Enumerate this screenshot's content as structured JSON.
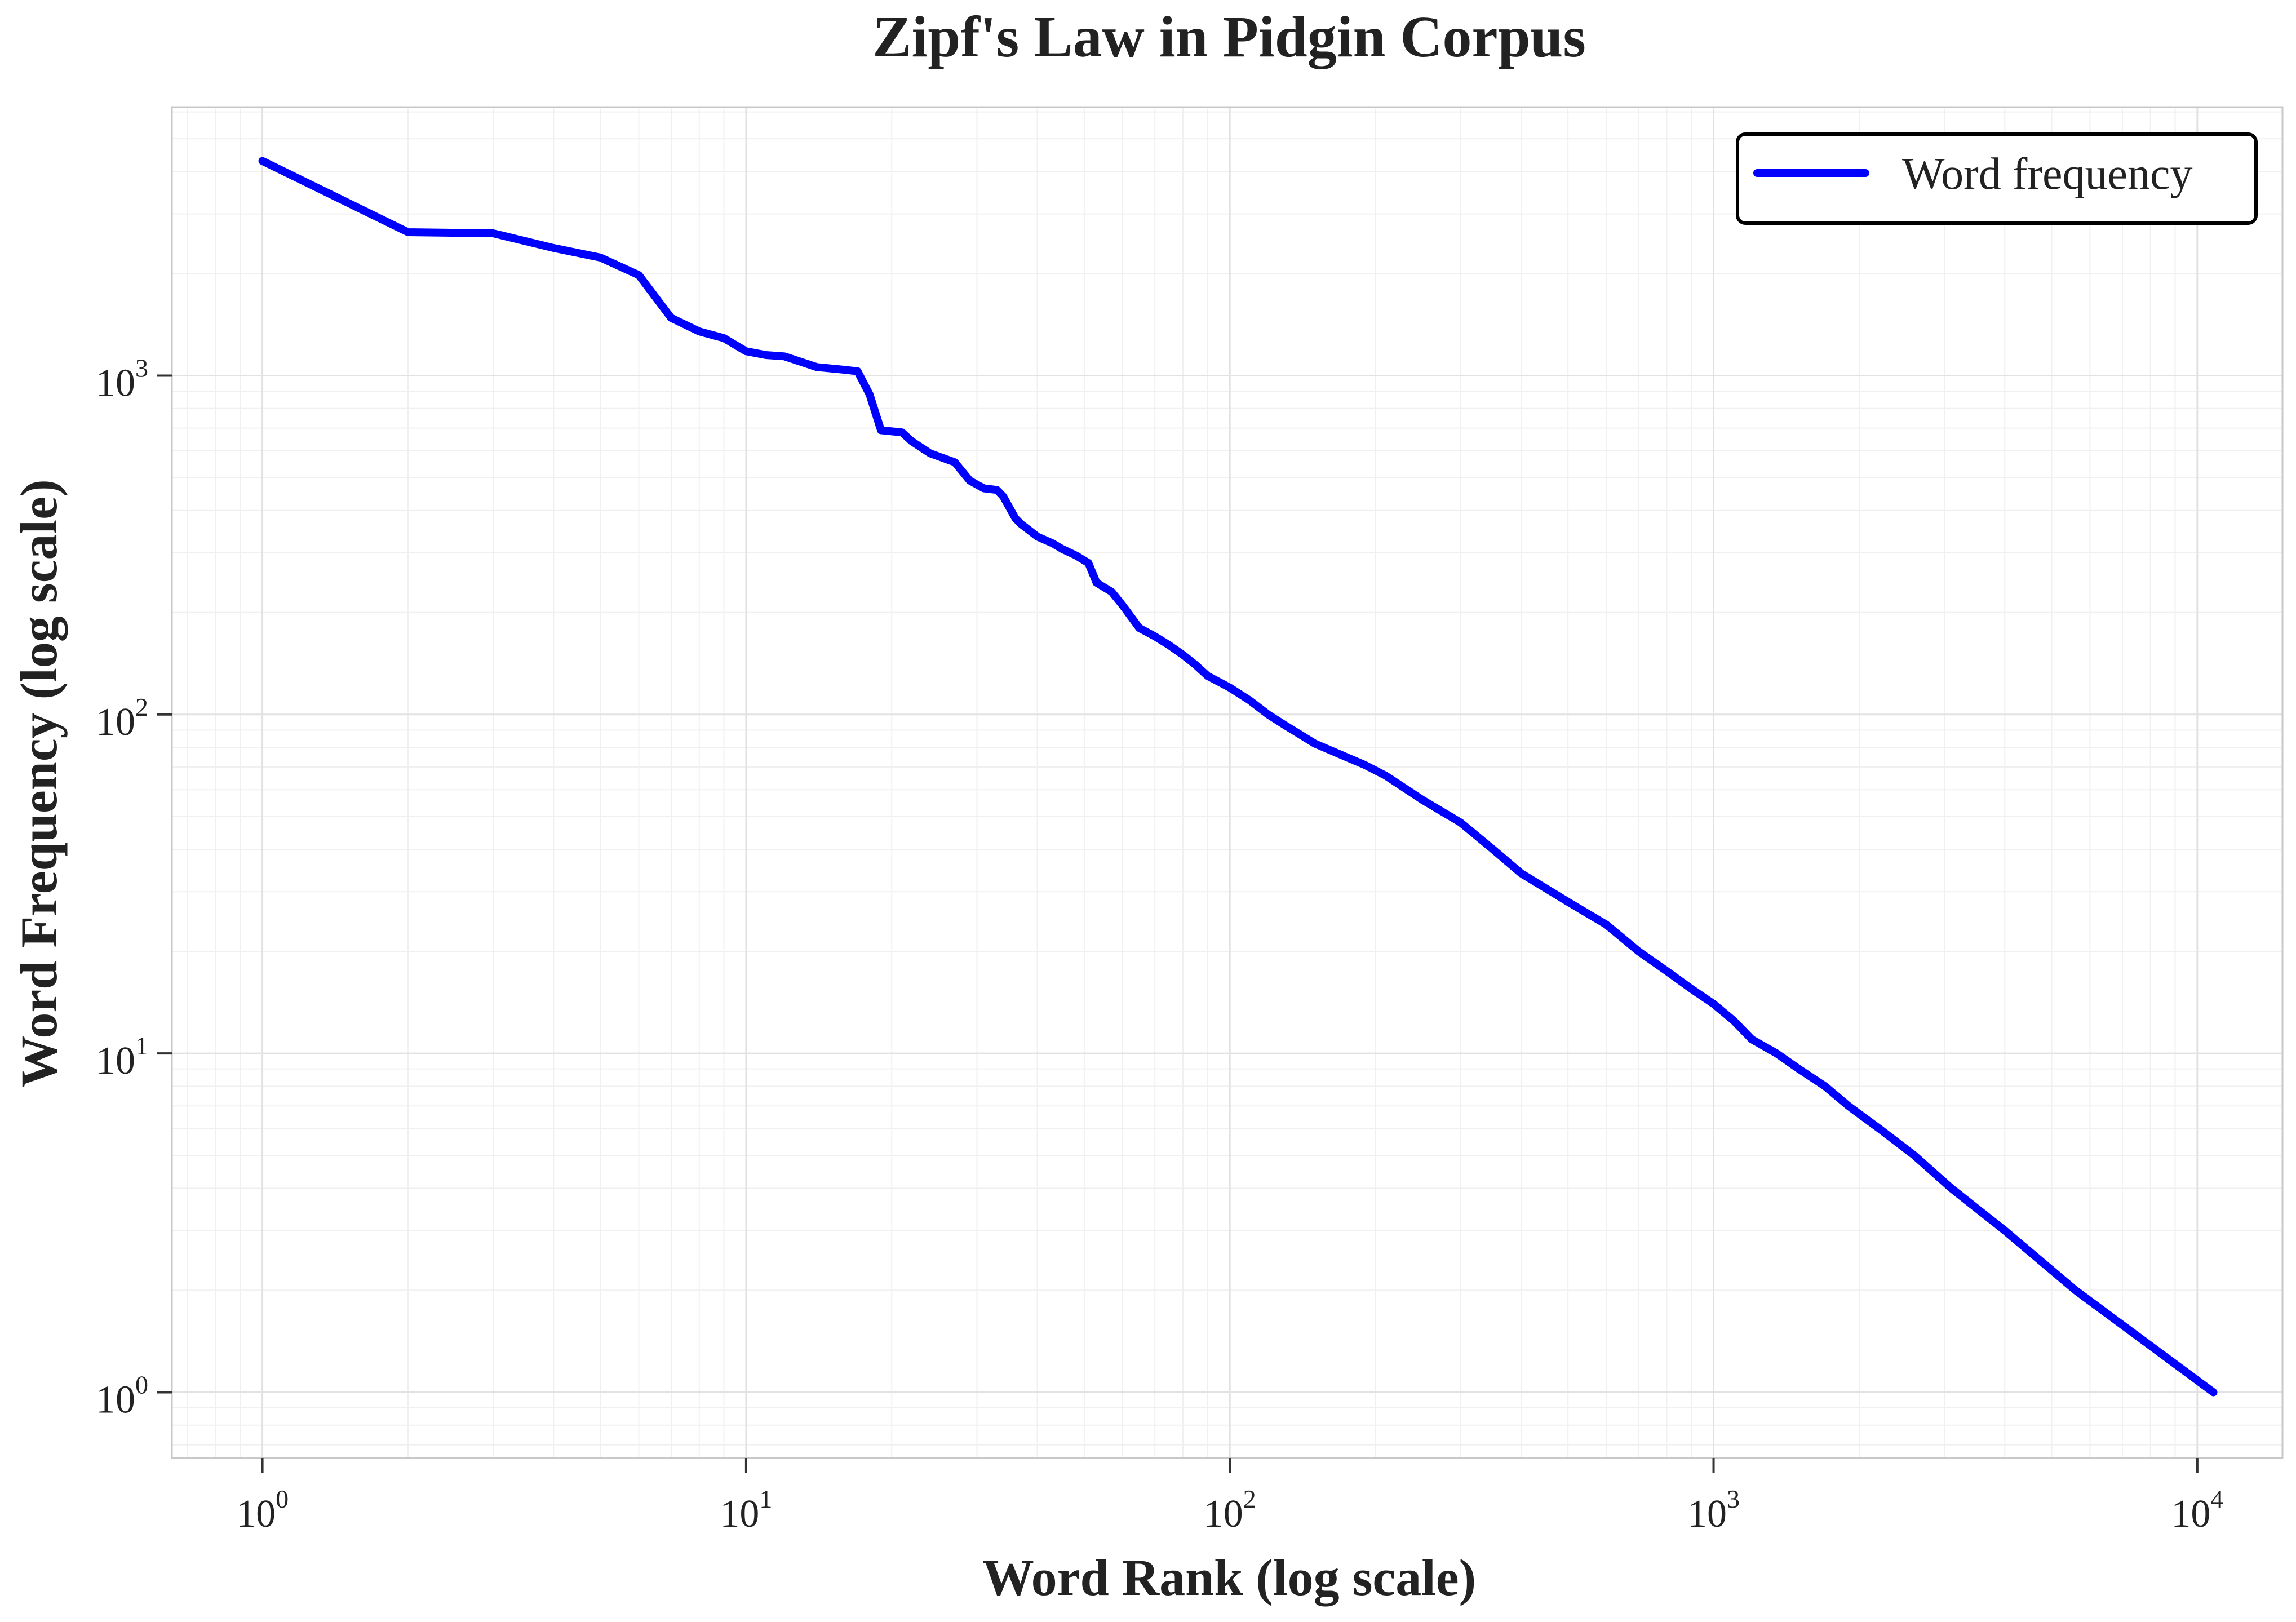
{
  "chart_data": {
    "type": "line",
    "title": "Zipf's Law in Pidgin Corpus",
    "xlabel": "Word Rank (log scale)",
    "ylabel": "Word Frequency (log scale)",
    "xscale": "log",
    "yscale": "log",
    "xlim": [
      0.65,
      15000
    ],
    "ylim": [
      0.64,
      6200
    ],
    "grid": true,
    "minor_grid": true,
    "legend_position": "top-right",
    "x_ticks": [
      {
        "base": "10",
        "exp": "0",
        "value": 1
      },
      {
        "base": "10",
        "exp": "1",
        "value": 10
      },
      {
        "base": "10",
        "exp": "2",
        "value": 100
      },
      {
        "base": "10",
        "exp": "3",
        "value": 1000
      },
      {
        "base": "10",
        "exp": "4",
        "value": 10000
      }
    ],
    "y_ticks": [
      {
        "base": "10",
        "exp": "0",
        "value": 1
      },
      {
        "base": "10",
        "exp": "1",
        "value": 10
      },
      {
        "base": "10",
        "exp": "2",
        "value": 100
      },
      {
        "base": "10",
        "exp": "3",
        "value": 1000
      }
    ],
    "series": [
      {
        "name": "Word frequency",
        "color": "#0000ff",
        "x": [
          1,
          2,
          3,
          4,
          5,
          6,
          7,
          8,
          9,
          10,
          11,
          12,
          14,
          16,
          17,
          18,
          19,
          21,
          22,
          24,
          27,
          29,
          31,
          33,
          34,
          36,
          37,
          40,
          43,
          45,
          48,
          51,
          53,
          57,
          60,
          65,
          70,
          75,
          80,
          85,
          90,
          100,
          110,
          120,
          130,
          150,
          170,
          190,
          210,
          250,
          300,
          350,
          400,
          500,
          600,
          700,
          800,
          900,
          1000,
          1100,
          1200,
          1350,
          1500,
          1700,
          1900,
          2200,
          2600,
          3100,
          4000,
          5600,
          10800
        ],
        "y": [
          4300,
          2650,
          2630,
          2380,
          2230,
          1980,
          1480,
          1350,
          1290,
          1180,
          1150,
          1140,
          1060,
          1040,
          1030,
          880,
          690,
          680,
          640,
          590,
          555,
          490,
          465,
          460,
          440,
          380,
          365,
          335,
          320,
          308,
          295,
          280,
          245,
          230,
          210,
          180,
          170,
          160,
          150,
          140,
          130,
          120,
          110,
          100,
          93,
          82,
          76,
          71,
          66,
          56,
          48,
          40,
          34,
          28,
          24,
          20,
          17.5,
          15.5,
          14,
          12.5,
          11,
          10,
          9,
          8,
          7,
          6,
          5,
          4,
          3,
          2,
          1
        ]
      }
    ]
  }
}
